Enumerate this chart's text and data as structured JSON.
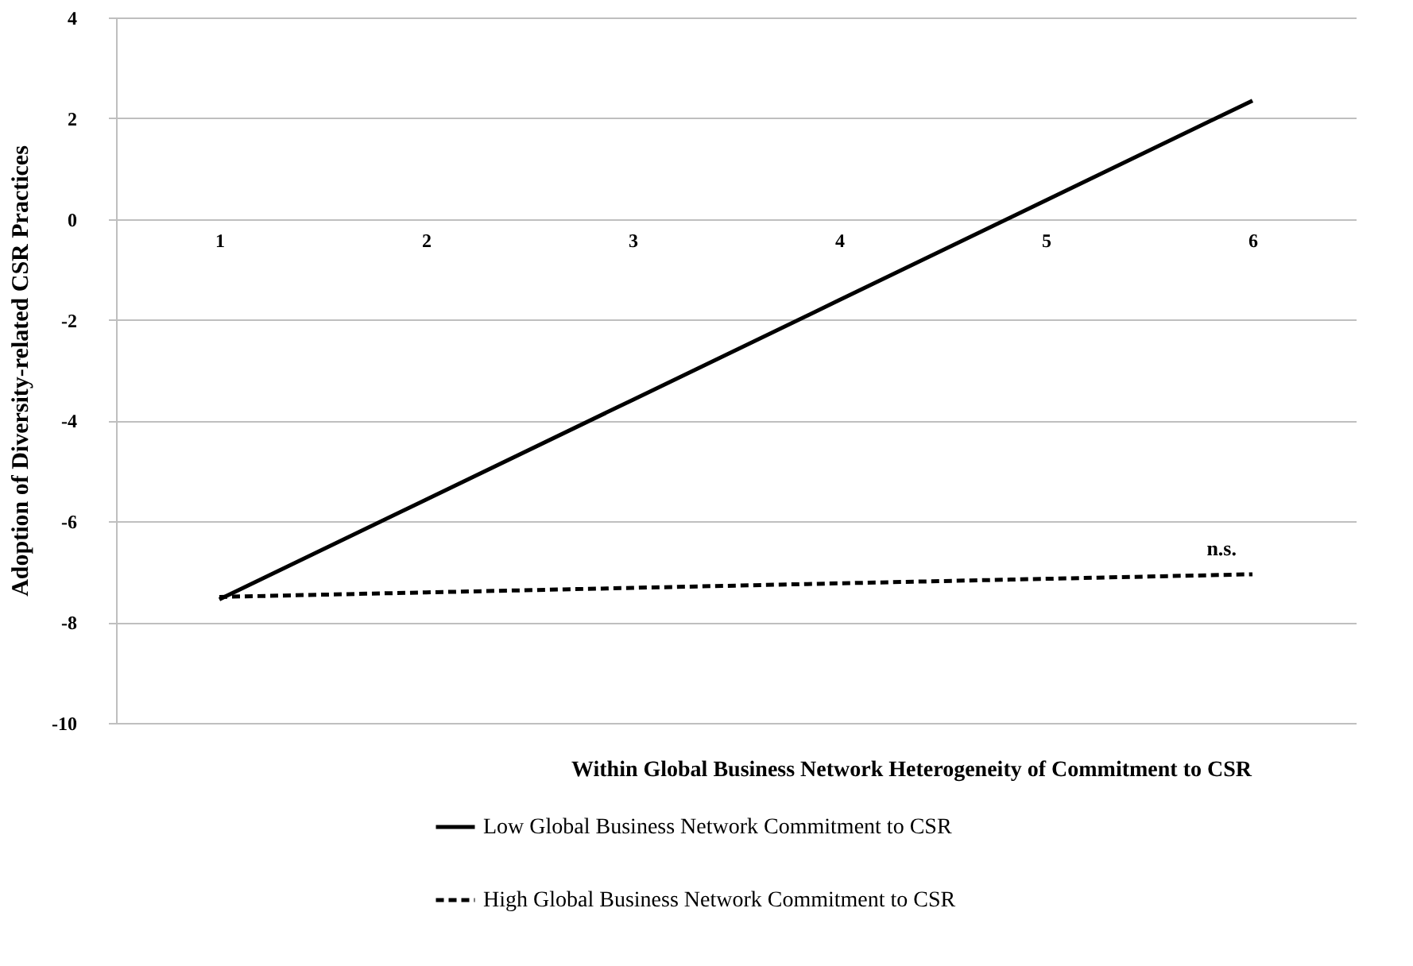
{
  "chart_data": {
    "type": "line",
    "xlabel": "Within Global Business Network Heterogeneity of Commitment to CSR",
    "ylabel": "Adoption of  Diversity-related  CSR Practices",
    "categories": [
      "1",
      "2",
      "3",
      "4",
      "5",
      "6"
    ],
    "series": [
      {
        "name": "Low Global Business Network Commitment to CSR",
        "color": "#000000",
        "line_style": "solid",
        "values": [
          -7.55,
          -5.57,
          -3.59,
          -1.61,
          0.37,
          2.35
        ]
      },
      {
        "name": "High Global Business Network Commitment to CSR",
        "color": "#000000",
        "line_style": "dashed",
        "values": [
          -7.5,
          -7.41,
          -7.32,
          -7.23,
          -7.14,
          -7.05
        ]
      }
    ],
    "ylim": [
      -10,
      4
    ],
    "yticks": [
      -10,
      -8,
      -6,
      -4,
      -2,
      0,
      2,
      4
    ],
    "grid": "y",
    "legend": "bottom",
    "marker": "none",
    "annotations": [
      {
        "text": "n.s.",
        "x": "6",
        "y": -7.05
      }
    ]
  }
}
